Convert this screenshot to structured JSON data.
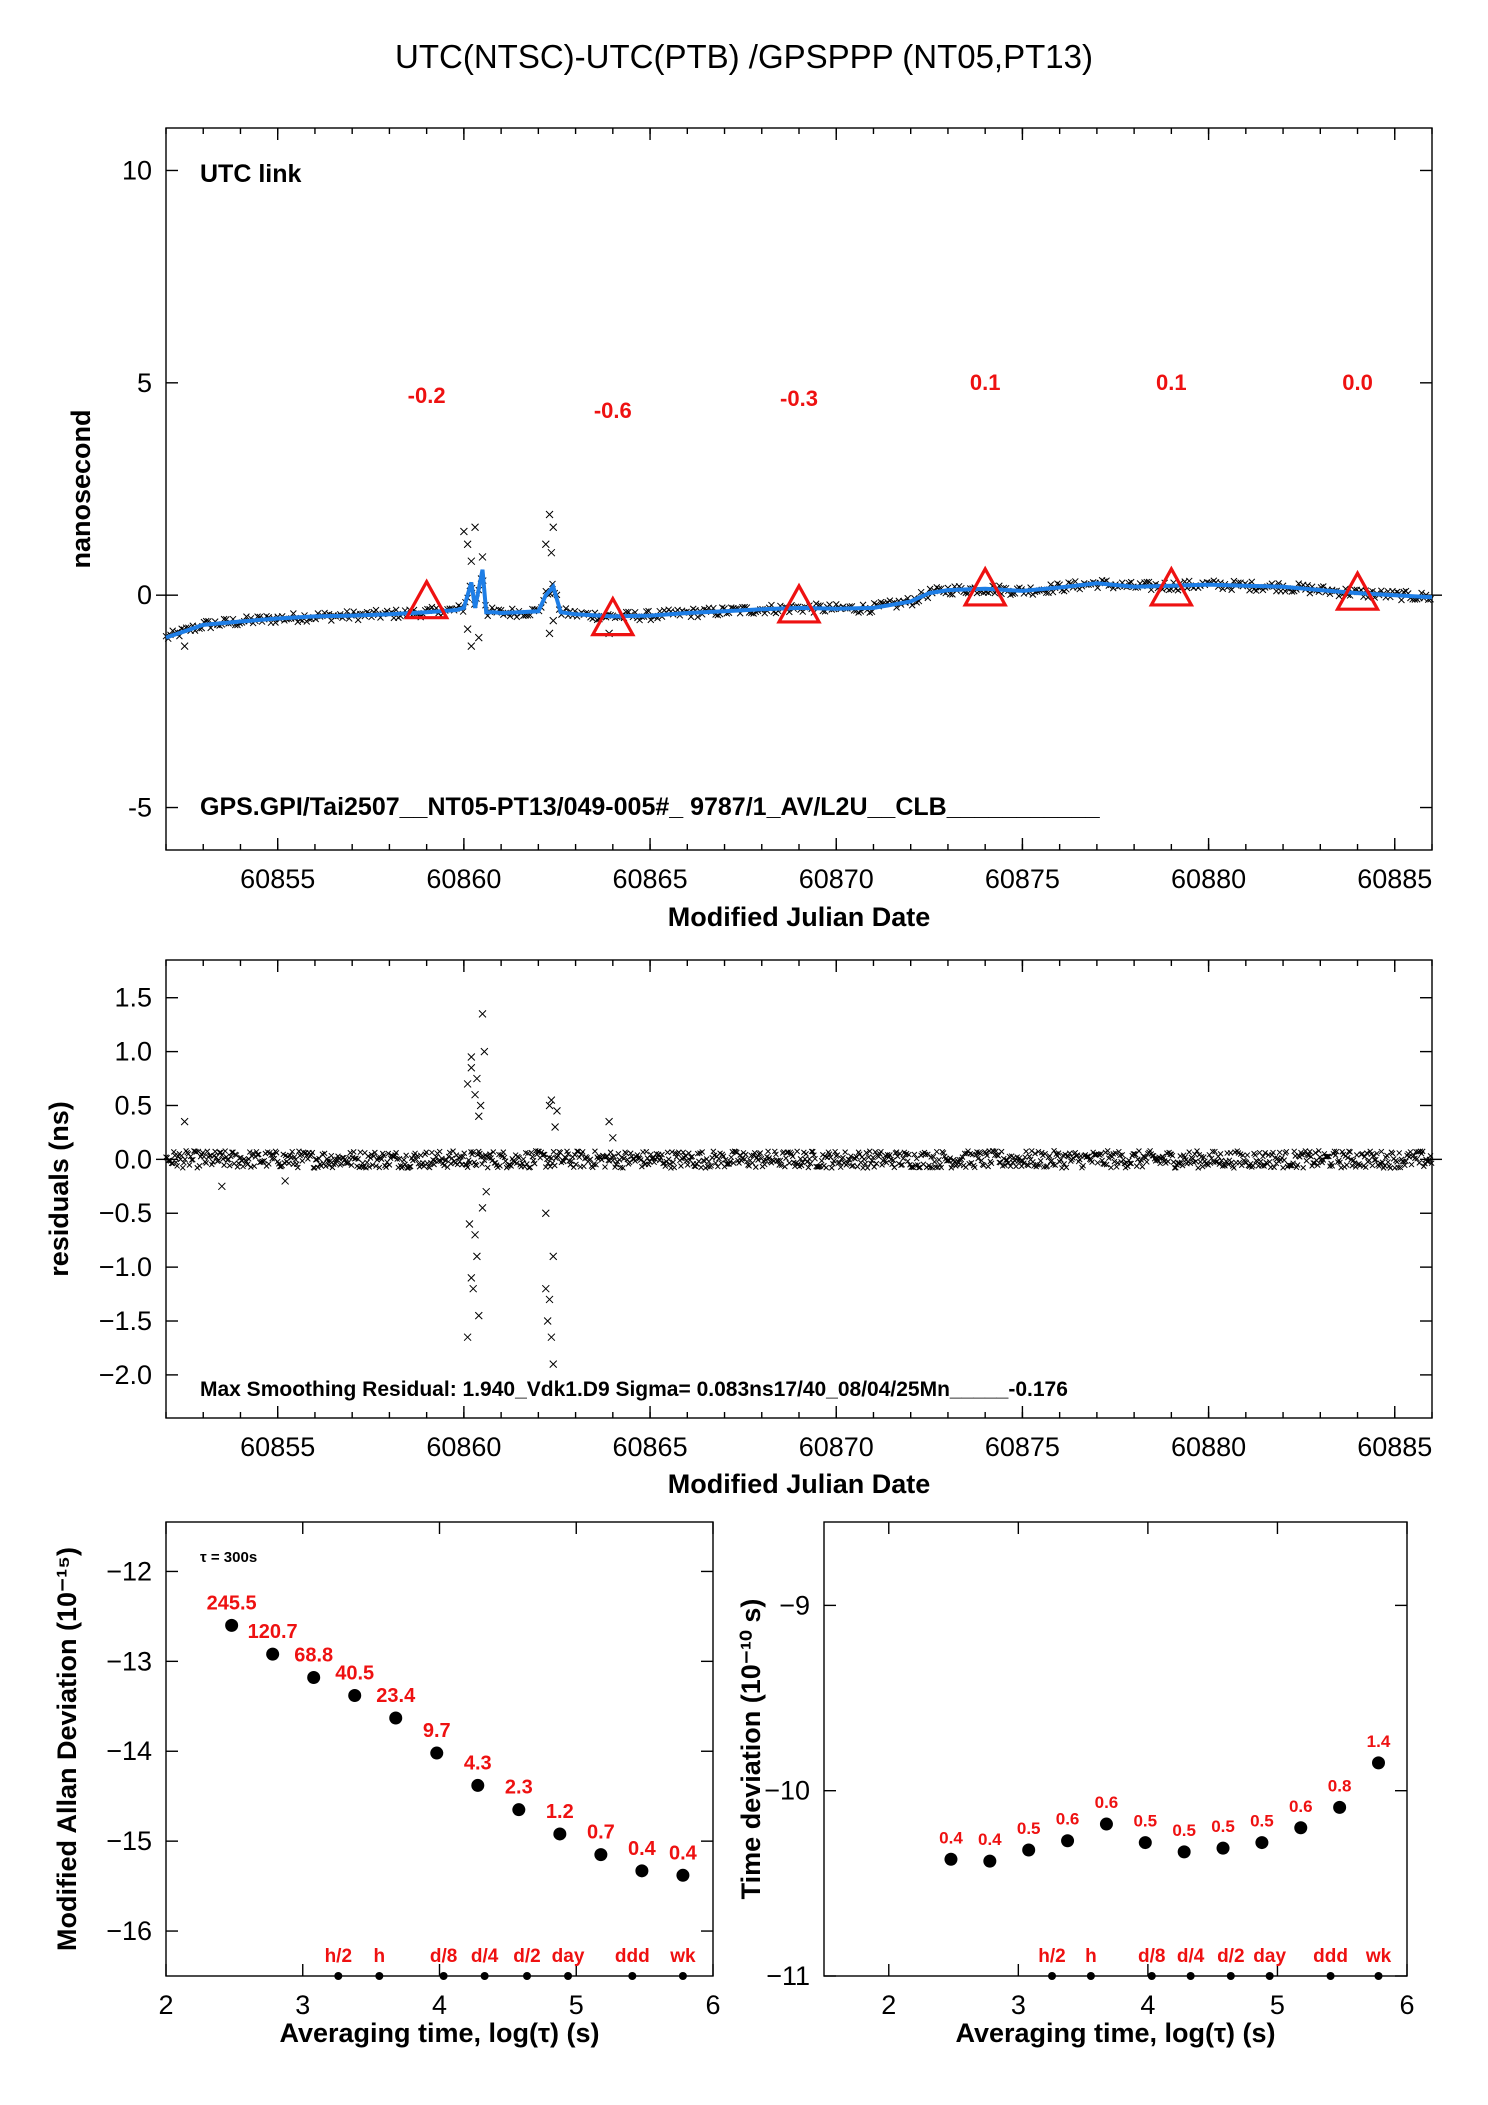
{
  "title": "UTC(NTSC)-UTC(PTB)  /GPSPPP  (NT05,PT13)",
  "colors": {
    "series": "#1e7ee6",
    "markers": "#ee1111",
    "points": "#000000",
    "utc_link": "#6b8e23"
  },
  "chart_data": [
    {
      "id": "link",
      "type": "line",
      "xlabel": "Modified Julian Date",
      "ylabel": "nanosecond",
      "xlim": [
        60852.0,
        60886.0
      ],
      "ylim": [
        -6.0,
        11.0
      ],
      "xticks": [
        60855,
        60860,
        60865,
        60870,
        60875,
        60880,
        60885
      ],
      "yticks": [
        -5,
        0,
        5,
        10
      ],
      "legend_text": "UTC link",
      "annotation": "GPS.GPI/Tai2507__NT05-PT13/049-005#_  9787/1_AV/L2U__CLB___________",
      "smoothed_series": {
        "x": [
          60852.0,
          60852.5,
          60853.0,
          60854.0,
          60855.0,
          60856.0,
          60857.0,
          60858.0,
          60859.0,
          60859.8,
          60860.0,
          60860.2,
          60860.3,
          60860.5,
          60860.6,
          60860.8,
          60861.0,
          60861.5,
          60862.0,
          60862.2,
          60862.4,
          60862.6,
          60863.0,
          60864.0,
          60865.0,
          60866.0,
          60867.0,
          60868.0,
          60869.0,
          60870.0,
          60871.0,
          60872.0,
          60872.5,
          60873.0,
          60874.0,
          60875.0,
          60876.0,
          60877.0,
          60878.0,
          60879.0,
          60880.0,
          60881.0,
          60882.0,
          60883.0,
          60884.0,
          60885.0,
          60886.0
        ],
        "y": [
          -1.0,
          -0.85,
          -0.7,
          -0.62,
          -0.55,
          -0.5,
          -0.48,
          -0.45,
          -0.4,
          -0.35,
          -0.3,
          0.3,
          -0.3,
          0.6,
          -0.4,
          -0.4,
          -0.42,
          -0.4,
          -0.38,
          0.0,
          0.2,
          -0.4,
          -0.45,
          -0.5,
          -0.48,
          -0.42,
          -0.38,
          -0.33,
          -0.3,
          -0.32,
          -0.3,
          -0.15,
          0.05,
          0.12,
          0.15,
          0.1,
          0.18,
          0.28,
          0.2,
          0.22,
          0.25,
          0.22,
          0.2,
          0.12,
          0.05,
          0.0,
          -0.05
        ]
      },
      "calibration_points": [
        {
          "x": 60859,
          "y": -0.2,
          "label": "-0.2"
        },
        {
          "x": 60864,
          "y": -0.6,
          "label": "-0.6"
        },
        {
          "x": 60869,
          "y": -0.3,
          "label": "-0.3"
        },
        {
          "x": 60874,
          "y": 0.1,
          "label": "0.1"
        },
        {
          "x": 60879,
          "y": 0.1,
          "label": "0.1"
        },
        {
          "x": 60884,
          "y": 0.0,
          "label": "0.0"
        }
      ]
    },
    {
      "id": "residuals",
      "type": "scatter",
      "xlabel": "Modified Julian Date",
      "ylabel": "residuals (ns)",
      "xlim": [
        60852.0,
        60886.0
      ],
      "ylim": [
        -2.4,
        1.85
      ],
      "xticks": [
        60855,
        60860,
        60865,
        60870,
        60875,
        60880,
        60885
      ],
      "yticks": [
        -2.0,
        -1.5,
        -1.0,
        -0.5,
        0.0,
        0.5,
        1.0,
        1.5
      ],
      "ytick_labels": [
        "−2.0",
        "−1.5",
        "−1.0",
        "−0.5",
        "0.0",
        "0.5",
        "1.0",
        "1.5"
      ],
      "annotation": "Max Smoothing Residual: 1.940_Vdk1.D9  Sigma= 0.083ns17/40_08/04/25Mn_____-0.176",
      "outliers": {
        "x": [
          60860.1,
          60860.15,
          60860.2,
          60860.25,
          60860.3,
          60860.35,
          60860.4,
          60860.45,
          60860.1,
          60860.2,
          60860.3,
          60860.4,
          60860.5,
          60860.5,
          60860.55,
          60860.6,
          60860.2,
          60860.35,
          60862.2,
          60862.25,
          60862.3,
          60862.35,
          60862.4,
          60862.45,
          60862.3,
          60862.35,
          60862.4,
          60862.2,
          60862.5,
          60863.9,
          60864.0,
          60852.5,
          60853.5,
          60855.2
        ],
        "y": [
          0.7,
          -0.6,
          0.95,
          -1.2,
          0.6,
          -0.9,
          -1.45,
          0.5,
          -1.65,
          0.85,
          -0.7,
          0.4,
          1.35,
          -0.45,
          1.0,
          -0.3,
          -1.1,
          0.75,
          -1.2,
          -1.5,
          0.5,
          -1.65,
          -1.9,
          0.3,
          -1.3,
          0.55,
          -0.9,
          -0.5,
          0.45,
          0.35,
          0.2,
          0.35,
          -0.25,
          -0.2
        ]
      }
    },
    {
      "id": "mdev",
      "type": "scatter",
      "xlabel": "Averaging time, log(τ) (s)",
      "ylabel": "Modified Allan Deviation (10⁻¹⁵)",
      "xlim": [
        2.0,
        6.0
      ],
      "ylim": [
        -16.5,
        -11.45
      ],
      "xticks": [
        2,
        3,
        4,
        5,
        6
      ],
      "yticks": [
        -16,
        -15,
        -14,
        -13,
        -12
      ],
      "ytick_labels": [
        "−16",
        "−15",
        "−14",
        "−13",
        "−12"
      ],
      "annotation": "τ = 300s",
      "x": [
        2.48,
        2.78,
        3.08,
        3.38,
        3.68,
        3.98,
        4.28,
        4.58,
        4.88,
        5.18,
        5.48,
        5.78
      ],
      "y": [
        -12.6,
        -12.92,
        -13.18,
        -13.38,
        -13.63,
        -14.02,
        -14.38,
        -14.65,
        -14.92,
        -15.15,
        -15.33,
        -15.38
      ],
      "labels": [
        "245.5",
        "120.7",
        "68.8",
        "40.5",
        "23.4",
        "9.7",
        "4.3",
        "2.3",
        "1.2",
        "0.7",
        "0.4",
        "0.4"
      ],
      "reference_marks": [
        {
          "x": 3.26,
          "label": "h/2"
        },
        {
          "x": 3.56,
          "label": "h"
        },
        {
          "x": 4.03,
          "label": "d/8"
        },
        {
          "x": 4.33,
          "label": "d/4"
        },
        {
          "x": 4.64,
          "label": "d/2"
        },
        {
          "x": 4.94,
          "label": "day"
        },
        {
          "x": 5.41,
          "label": "ddd"
        },
        {
          "x": 5.78,
          "label": "wk"
        }
      ]
    },
    {
      "id": "tdev",
      "type": "scatter",
      "xlabel": "Averaging time, log(τ) (s)",
      "ylabel": "Time deviation (10⁻¹⁰ s)",
      "xlim": [
        1.5,
        6.0
      ],
      "ylim": [
        -11.0,
        -8.55
      ],
      "xticks": [
        2,
        3,
        4,
        5,
        6
      ],
      "yticks": [
        -11,
        -10,
        -9
      ],
      "ytick_labels": [
        "−11",
        "−10",
        "−9"
      ],
      "x": [
        2.48,
        2.78,
        3.08,
        3.38,
        3.68,
        3.98,
        4.28,
        4.58,
        4.88,
        5.18,
        5.48,
        5.78
      ],
      "y": [
        -10.37,
        -10.38,
        -10.32,
        -10.27,
        -10.18,
        -10.28,
        -10.33,
        -10.31,
        -10.28,
        -10.2,
        -10.09,
        -9.85
      ],
      "labels": [
        "0.4",
        "0.4",
        "0.5",
        "0.6",
        "0.6",
        "0.5",
        "0.5",
        "0.5",
        "0.5",
        "0.6",
        "0.8",
        "1.4"
      ],
      "reference_marks": [
        {
          "x": 3.26,
          "label": "h/2"
        },
        {
          "x": 3.56,
          "label": "h"
        },
        {
          "x": 4.03,
          "label": "d/8"
        },
        {
          "x": 4.33,
          "label": "d/4"
        },
        {
          "x": 4.64,
          "label": "d/2"
        },
        {
          "x": 4.94,
          "label": "day"
        },
        {
          "x": 5.41,
          "label": "ddd"
        },
        {
          "x": 5.78,
          "label": "wk"
        }
      ]
    }
  ]
}
